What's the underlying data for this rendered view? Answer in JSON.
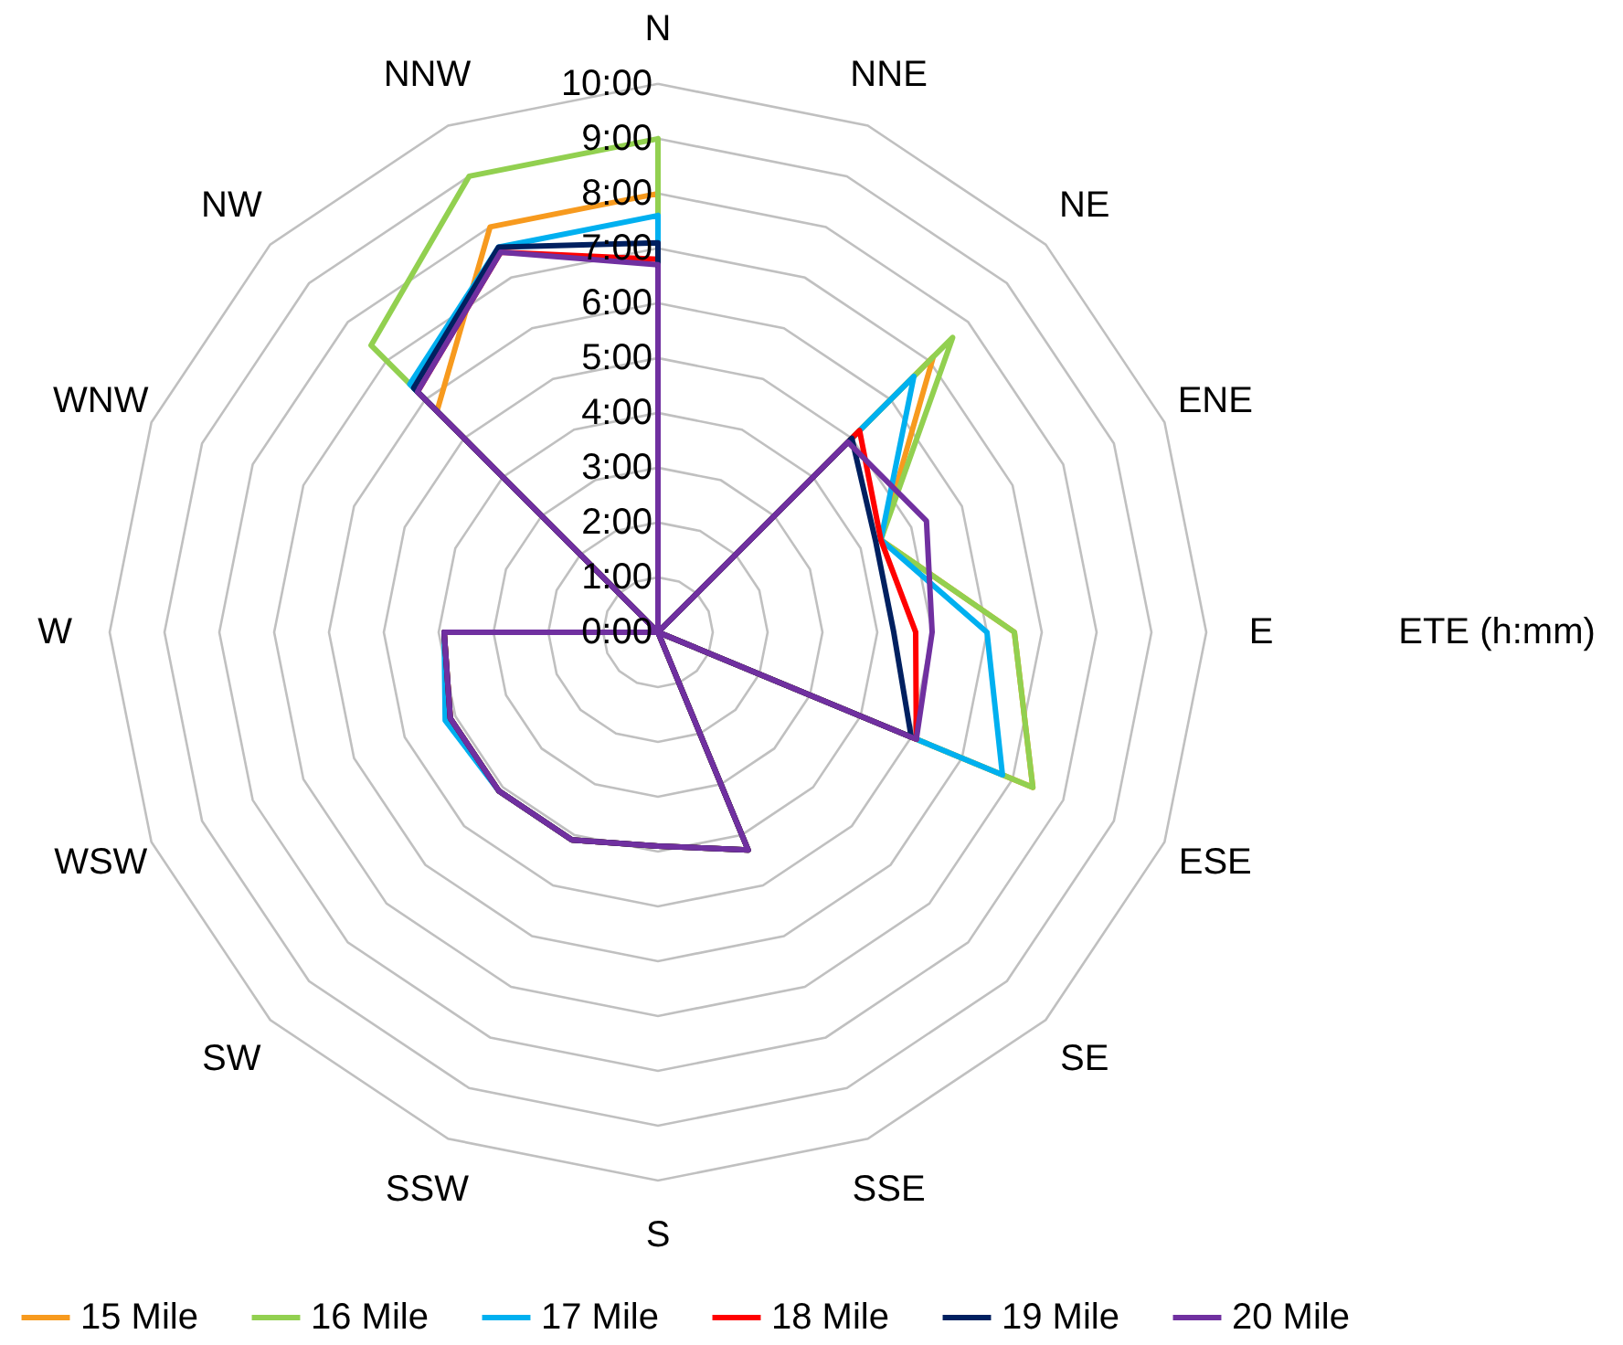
{
  "chart_data": {
    "type": "radar",
    "ylabel": "ETE (h:mm)",
    "categories": [
      "N",
      "NNE",
      "NE",
      "ENE",
      "E",
      "ESE",
      "SE",
      "SSE",
      "S",
      "SSW",
      "SW",
      "WSW",
      "W",
      "WNW",
      "NW",
      "NNW"
    ],
    "series": [
      {
        "name": "15 Mile",
        "color": "#f79a1e",
        "values": [
          8.0,
          0,
          7.1,
          4.4,
          6.5,
          7.4,
          0,
          4.3,
          3.9,
          4.1,
          4.1,
          4.1,
          3.9,
          0,
          5.7,
          8.0
        ]
      },
      {
        "name": "16 Mile",
        "color": "#92d050",
        "values": [
          9.0,
          0,
          7.6,
          4.4,
          6.5,
          7.4,
          0,
          4.3,
          3.9,
          4.1,
          4.1,
          4.1,
          3.9,
          0,
          7.4,
          9.0
        ]
      },
      {
        "name": "17 Mile",
        "color": "#00b0f0",
        "values": [
          7.6,
          0,
          6.6,
          4.4,
          6.0,
          6.8,
          0,
          4.3,
          3.9,
          4.1,
          4.1,
          4.2,
          3.9,
          0,
          6.4,
          7.6
        ]
      },
      {
        "name": "18 Mile",
        "color": "#ff0000",
        "values": [
          6.8,
          0,
          5.2,
          4.4,
          4.7,
          5.1,
          0,
          4.3,
          3.9,
          4.1,
          4.1,
          4.1,
          3.9,
          0,
          6.2,
          7.5
        ]
      },
      {
        "name": "19 Mile",
        "color": "#002060",
        "values": [
          7.1,
          0,
          5.0,
          4.3,
          4.3,
          5.0,
          0,
          4.3,
          3.9,
          4.1,
          4.1,
          4.1,
          3.9,
          0,
          6.3,
          7.6
        ]
      },
      {
        "name": "20 Mile",
        "color": "#7030a0",
        "values": [
          6.7,
          0,
          4.9,
          5.3,
          5.0,
          5.1,
          0,
          4.3,
          3.9,
          4.1,
          4.1,
          4.1,
          3.9,
          0,
          6.2,
          7.5
        ]
      }
    ],
    "ylim": [
      0,
      10
    ],
    "yticks": [
      {
        "value": 0,
        "label": "0:00"
      },
      {
        "value": 1,
        "label": "1:00"
      },
      {
        "value": 2,
        "label": "2:00"
      },
      {
        "value": 3,
        "label": "3:00"
      },
      {
        "value": 4,
        "label": "4:00"
      },
      {
        "value": 5,
        "label": "5:00"
      },
      {
        "value": 6,
        "label": "6:00"
      },
      {
        "value": 7,
        "label": "7:00"
      },
      {
        "value": 8,
        "label": "8:00"
      },
      {
        "value": 9,
        "label": "9:00"
      },
      {
        "value": 10,
        "label": "10:00"
      }
    ],
    "grid": true,
    "legend": "bottom",
    "marker": "none",
    "line_style": "solid"
  }
}
